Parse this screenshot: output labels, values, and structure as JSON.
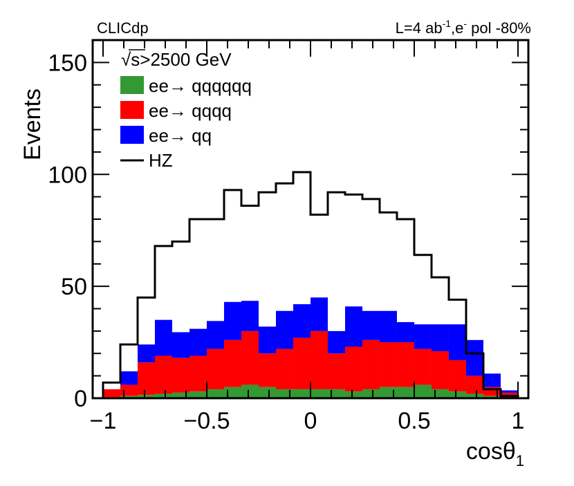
{
  "chart_data": {
    "type": "stacked-histogram",
    "header_left": "CLICdp",
    "header_right": {
      "prefix": "L=4 ab",
      "sup1": "-1",
      "mid": ",e",
      "sup2": "-",
      "suffix": " pol -80%"
    },
    "ylabel": "Events",
    "xlabel": {
      "main": "cosθ",
      "sub": "1"
    },
    "xlim": [
      -1.05,
      1.05
    ],
    "ylim": [
      0,
      160
    ],
    "xticks": [
      {
        "value": -1,
        "label": "−1"
      },
      {
        "value": -0.5,
        "label": "−0.5"
      },
      {
        "value": 0,
        "label": "0"
      },
      {
        "value": 0.5,
        "label": "0.5"
      },
      {
        "value": 1,
        "label": "1"
      }
    ],
    "yticks": [
      {
        "value": 0,
        "label": "0"
      },
      {
        "value": 50,
        "label": "50"
      },
      {
        "value": 100,
        "label": "100"
      },
      {
        "value": 150,
        "label": "150"
      }
    ],
    "bins": {
      "first_edge": -1.0,
      "width": 0.08333,
      "count": 24
    },
    "legend": {
      "title": "√s>2500 GeV",
      "entries": [
        {
          "label": "ee→ qqqqqq",
          "series": "qqqqqq"
        },
        {
          "label": "ee→ qqqq",
          "series": "qqqq"
        },
        {
          "label": "ee→ qq",
          "series": "qq"
        },
        {
          "label": "HZ",
          "series": "HZ"
        }
      ]
    },
    "series": [
      {
        "name": "qqqqqq",
        "label": "ee→ qqqqqq",
        "kind": "stacked-fill",
        "color": "#339933",
        "values": [
          0.5,
          1,
          1.5,
          2,
          2.5,
          3,
          4,
          5,
          6,
          5,
          4,
          4,
          4,
          4,
          3,
          4,
          5,
          5,
          6,
          4,
          3,
          2,
          1,
          0.5
        ]
      },
      {
        "name": "qqqq",
        "label": "ee→ qqqq",
        "kind": "stacked-fill",
        "color": "#ff0000",
        "values": [
          3.5,
          5,
          14.5,
          17,
          15.5,
          16,
          18,
          21,
          24,
          15,
          18,
          23,
          26,
          16,
          20,
          22,
          20,
          20,
          16,
          17,
          14,
          8,
          4,
          2
        ]
      },
      {
        "name": "qq",
        "label": "ee→ qq",
        "kind": "stacked-fill",
        "color": "#0000ff",
        "values": [
          0,
          6,
          8,
          16,
          11.5,
          12,
          12.5,
          17,
          13.5,
          12,
          17,
          15,
          15,
          10,
          18,
          13,
          14,
          9,
          11,
          12,
          16,
          16,
          6,
          1
        ]
      },
      {
        "name": "HZ",
        "label": "HZ",
        "kind": "outline",
        "color": "#000000",
        "values": [
          7,
          24,
          45,
          68,
          70,
          80,
          80,
          93,
          86,
          92,
          96,
          101,
          82,
          92,
          91,
          89,
          83,
          80,
          64,
          54,
          44,
          20,
          4,
          1
        ]
      }
    ]
  }
}
